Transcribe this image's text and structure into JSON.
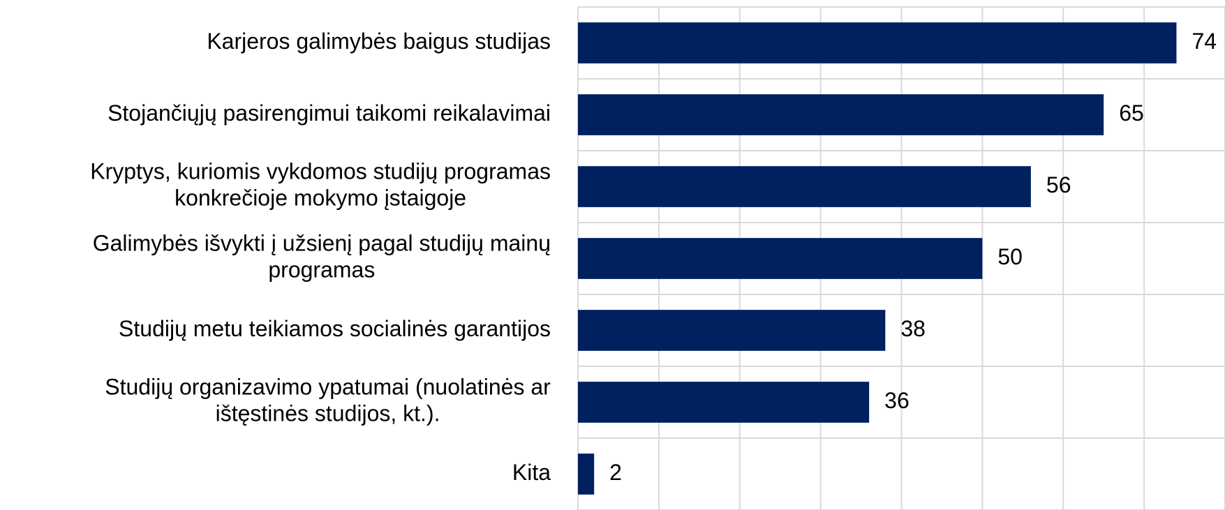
{
  "chart_data": {
    "type": "bar",
    "orientation": "horizontal",
    "categories": [
      "Karjeros galimybės baigus studijas",
      "Stojančiųjų pasirengimui taikomi reikalavimai",
      "Kryptys, kuriomis vykdomos studijų programas\nkonkrečioje mokymo įstaigoje",
      "Galimybės išvykti į užsienį pagal studijų mainų\nprogramas",
      "Studijų metu teikiamos socialinės garantijos",
      "Studijų organizavimo ypatumai (nuolatinės ar\ništęstinės studijos, kt.).",
      "Kita"
    ],
    "values": [
      74,
      65,
      56,
      50,
      38,
      36,
      2
    ],
    "color": "#002060",
    "xlim": [
      0,
      80
    ],
    "xticks": [
      0,
      10,
      20,
      30,
      40,
      50,
      60,
      70,
      80
    ],
    "grid": true
  }
}
